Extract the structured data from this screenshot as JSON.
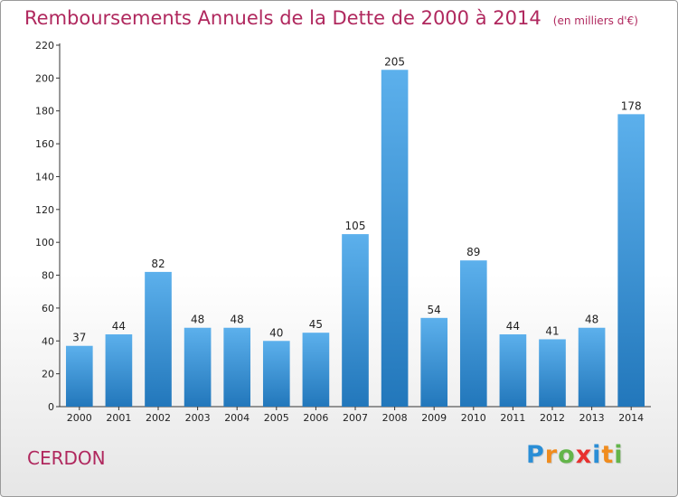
{
  "chart_data": {
    "type": "bar",
    "title": "Remboursements Annuels de la Dette de 2000 à 2014",
    "subtitle": "(en milliers d'€)",
    "categories": [
      "2000",
      "2001",
      "2002",
      "2003",
      "2004",
      "2005",
      "2006",
      "2007",
      "2008",
      "2009",
      "2010",
      "2011",
      "2012",
      "2013",
      "2014"
    ],
    "values": [
      37,
      44,
      82,
      48,
      48,
      40,
      45,
      105,
      205,
      54,
      89,
      44,
      41,
      48,
      178
    ],
    "ylim": [
      0,
      220
    ],
    "yticks": [
      0,
      20,
      40,
      60,
      80,
      100,
      120,
      140,
      160,
      180,
      200,
      220
    ],
    "grid": false,
    "bar_color": "#3d95d8"
  },
  "place": "CERDON",
  "logo": {
    "text": "Proxiti",
    "letters": [
      {
        "ch": "P",
        "color": "#2a8ed6"
      },
      {
        "ch": "r",
        "color": "#f08c1e"
      },
      {
        "ch": "o",
        "color": "#63b54a"
      },
      {
        "ch": "x",
        "color": "#e8312f"
      },
      {
        "ch": "i",
        "color": "#2a8ed6"
      },
      {
        "ch": "t",
        "color": "#f08c1e"
      },
      {
        "ch": "i",
        "color": "#63b54a"
      }
    ]
  }
}
